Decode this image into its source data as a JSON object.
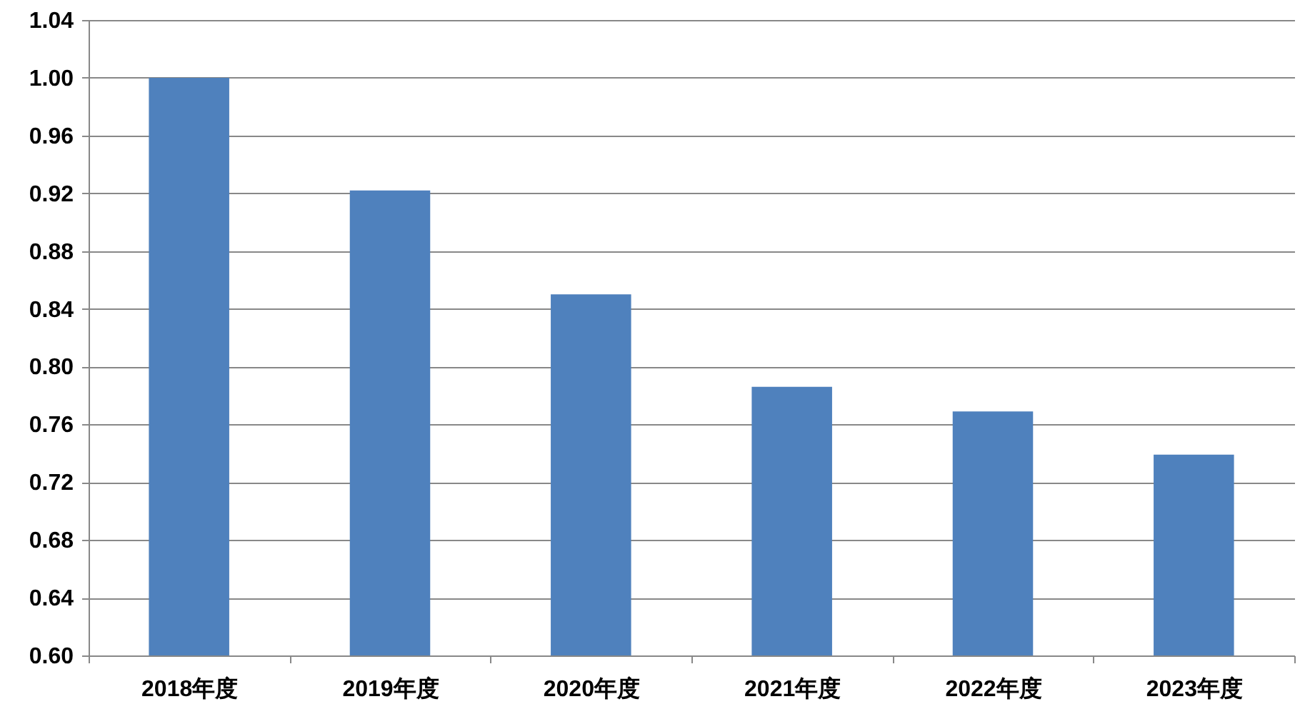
{
  "chart_data": {
    "type": "bar",
    "categories": [
      "2018年度",
      "2019年度",
      "2020年度",
      "2021年度",
      "2022年度",
      "2023年度"
    ],
    "values": [
      1.0,
      0.922,
      0.85,
      0.786,
      0.769,
      0.739
    ],
    "color": "#4f81bd",
    "ylim": [
      0.6,
      1.04
    ],
    "yticks": [
      {
        "value": 0.6,
        "label": "0.60"
      },
      0.64,
      0.68,
      0.72,
      0.76,
      {
        "value": 0.8,
        "label": "0.80"
      },
      0.84,
      0.88,
      0.92,
      0.96,
      {
        "value": 1.0,
        "label": "1.00"
      },
      1.04
    ],
    "grid": "y"
  }
}
